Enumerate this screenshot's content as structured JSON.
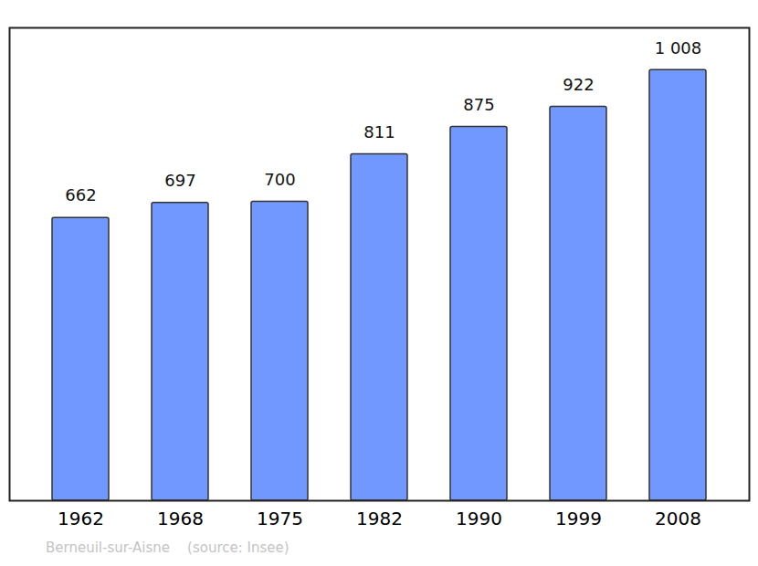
{
  "chart_data": {
    "type": "bar",
    "caption": "Berneuil-sur-Aisne    (source: Insee)",
    "categories": [
      "1962",
      "1968",
      "1975",
      "1982",
      "1990",
      "1999",
      "2008"
    ],
    "values": [
      662,
      697,
      700,
      811,
      875,
      922,
      1008
    ],
    "value_labels": [
      "662",
      "697",
      "700",
      "811",
      "875",
      "922",
      "1 008"
    ],
    "color": "#7098ff",
    "ylim": [
      0,
      1107
    ],
    "grid": false,
    "data_labels": true,
    "tick_labels": "x"
  }
}
